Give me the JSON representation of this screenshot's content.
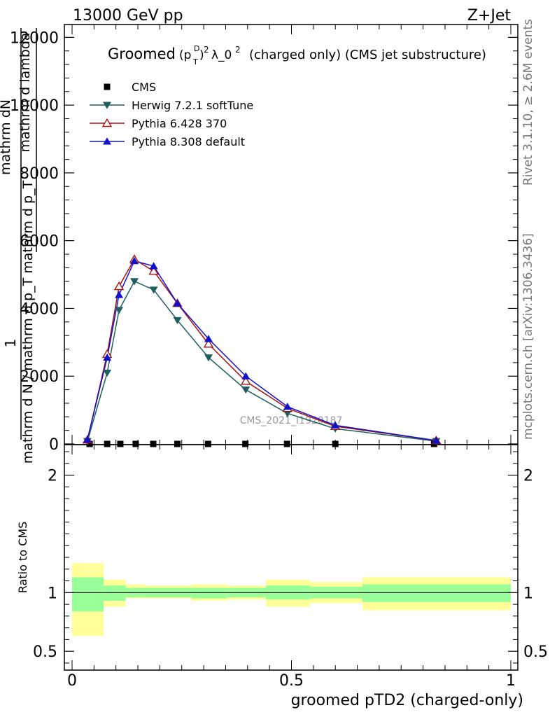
{
  "header": {
    "energy_label": "13000 GeV pp",
    "process_label": "Z+Jet"
  },
  "side_text": {
    "rivet": "Rivet 3.1.10, ≥ 2.6M events",
    "mcplots": "mcplots.cern.ch [arXiv:1306.3436]"
  },
  "watermark": "CMS_2021_I1920187",
  "chart_data": [
    {
      "type": "line",
      "title_main": "Groomed",
      "title_math": "(p",
      "title_rest": "λ_0",
      "title_tail": "(charged only) (CMS jet substructure)",
      "ylabel_lines": [
        "1",
        "mathrm d N / mathrm d p_T mathrm d p_T",
        "mathrm dN",
        "mathrm d lambda"
      ],
      "xlim": [
        0,
        1
      ],
      "ylim": [
        0,
        12400
      ],
      "y_ticks": [
        0,
        2000,
        4000,
        6000,
        8000,
        10000,
        12000
      ],
      "y_tick_labels": [
        "0",
        "2000",
        "4000",
        "6000",
        "8000",
        "10000",
        "12000"
      ],
      "series": [
        {
          "name": "CMS",
          "color": "#000000",
          "marker": "square",
          "x": [
            0.04,
            0.08,
            0.11,
            0.145,
            0.185,
            0.24,
            0.31,
            0.395,
            0.49,
            0.6,
            0.825
          ],
          "y": [
            0,
            0,
            0,
            0,
            0,
            0,
            0,
            0,
            0,
            0,
            0
          ]
        },
        {
          "name": "Herwig 7.2.1 softTune",
          "color": "#1f5f5f",
          "marker": "triangle-down",
          "x": [
            0.035,
            0.08,
            0.107,
            0.142,
            0.186,
            0.24,
            0.311,
            0.396,
            0.491,
            0.6,
            0.83
          ],
          "y": [
            80,
            2100,
            3950,
            4800,
            4550,
            3650,
            2550,
            1600,
            900,
            450,
            80
          ]
        },
        {
          "name": "Pythia 6.428 370",
          "color": "#aa1111",
          "marker": "triangle-up-open",
          "x": [
            0.035,
            0.08,
            0.107,
            0.142,
            0.186,
            0.24,
            0.311,
            0.396,
            0.491,
            0.6,
            0.83
          ],
          "y": [
            120,
            2650,
            4650,
            5450,
            5100,
            4150,
            2950,
            1850,
            1050,
            520,
            100
          ]
        },
        {
          "name": "Pythia 8.308 default",
          "color": "#1111cc",
          "marker": "triangle-up",
          "x": [
            0.035,
            0.08,
            0.107,
            0.142,
            0.186,
            0.24,
            0.311,
            0.396,
            0.491,
            0.6,
            0.83
          ],
          "y": [
            130,
            2550,
            4400,
            5400,
            5250,
            4150,
            3100,
            2000,
            1100,
            550,
            100
          ]
        }
      ],
      "legend_placement": "top-left"
    },
    {
      "type": "area",
      "ylabel": "Ratio to CMS",
      "xlabel": "groomed pTD2 (charged-only)",
      "xlim": [
        0,
        1
      ],
      "ylim": [
        0.34,
        2.26
      ],
      "y_ticks": [
        0.5,
        1,
        2
      ],
      "y_tick_labels": [
        "0.5",
        "1",
        "2"
      ],
      "x_ticks": [
        0,
        0.5,
        1
      ],
      "x_tick_labels": [
        "0",
        "0.5",
        "1"
      ],
      "bands": {
        "x_edges": [
          0.0,
          0.072,
          0.122,
          0.167,
          0.217,
          0.272,
          0.352,
          0.442,
          0.542,
          0.662,
          1.0
        ],
        "stat_lo": [
          0.84,
          0.93,
          0.96,
          0.96,
          0.96,
          0.95,
          0.96,
          0.94,
          0.95,
          0.92
        ],
        "stat_hi": [
          1.13,
          1.06,
          1.04,
          1.04,
          1.04,
          1.04,
          1.04,
          1.06,
          1.05,
          1.07
        ],
        "total_lo": [
          0.63,
          0.88,
          0.95,
          0.95,
          0.95,
          0.93,
          0.94,
          0.88,
          0.91,
          0.85
        ],
        "total_hi": [
          1.25,
          1.11,
          1.07,
          1.06,
          1.06,
          1.07,
          1.06,
          1.11,
          1.09,
          1.13
        ],
        "stat_color": "#99ff99",
        "total_color": "#ffff99"
      },
      "reference_line": 1
    }
  ]
}
